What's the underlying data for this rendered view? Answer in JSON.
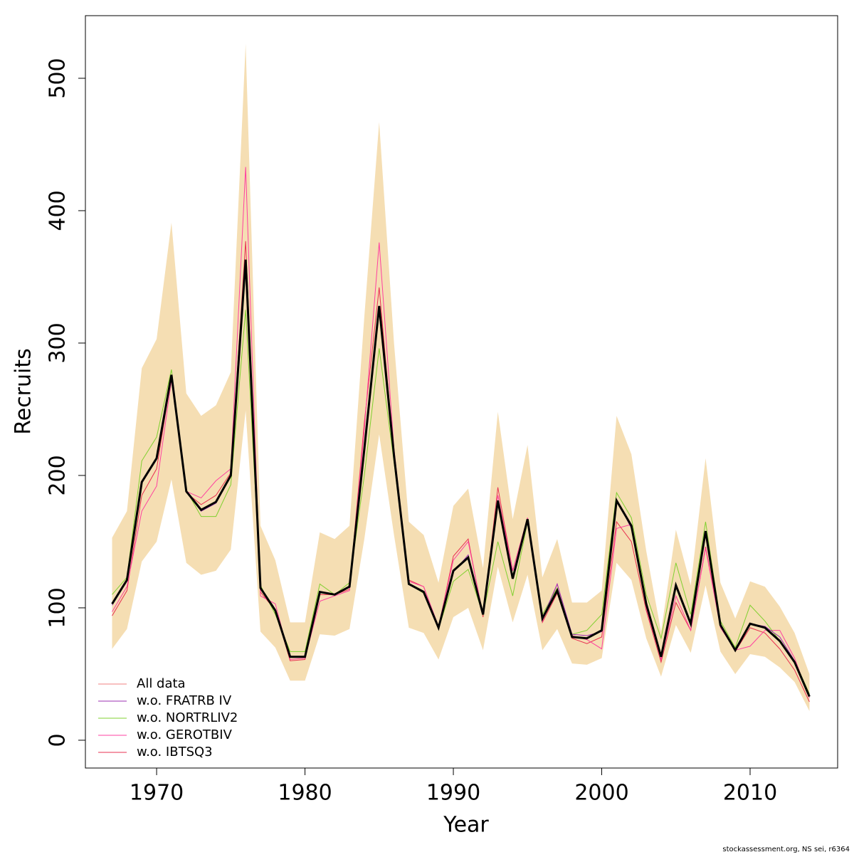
{
  "chart_data": {
    "type": "line",
    "x_label": "Year",
    "y_label": "Recruits",
    "footer": "stockassessment.org, NS sei, r6364",
    "x": [
      1967,
      1968,
      1969,
      1970,
      1971,
      1972,
      1973,
      1974,
      1975,
      1976,
      1977,
      1978,
      1979,
      1980,
      1981,
      1982,
      1983,
      1984,
      1985,
      1986,
      1987,
      1988,
      1989,
      1990,
      1991,
      1992,
      1993,
      1994,
      1995,
      1996,
      1997,
      1998,
      1999,
      2000,
      2001,
      2002,
      2003,
      2004,
      2005,
      2006,
      2007,
      2008,
      2009,
      2010,
      2011,
      2012,
      2013,
      2014
    ],
    "band": {
      "color": "#f5deb3",
      "upper": [
        153,
        173,
        281,
        303,
        391,
        262,
        245,
        253,
        278,
        526,
        162,
        136,
        89,
        89,
        157,
        152,
        162,
        320,
        467,
        300,
        165,
        155,
        119,
        177,
        190,
        130,
        248,
        167,
        223,
        123,
        152,
        104,
        104,
        113,
        245,
        216,
        143,
        82,
        159,
        117,
        213,
        119,
        92,
        120,
        116,
        101,
        81,
        50
      ],
      "lower": [
        69,
        84,
        135,
        150,
        197,
        134,
        125,
        128,
        144,
        249,
        82,
        70,
        45,
        45,
        80,
        79,
        84,
        152,
        231,
        155,
        85,
        81,
        61,
        93,
        100,
        68,
        131,
        89,
        125,
        68,
        84,
        58,
        57,
        62,
        134,
        121,
        77,
        48,
        87,
        66,
        117,
        67,
        50,
        65,
        63,
        55,
        44,
        22
      ]
    },
    "series": [
      {
        "name": "All data",
        "color": "#f08080",
        "line_color": "#000000",
        "values": [
          103,
          121,
          195,
          213,
          276,
          188,
          174,
          180,
          200,
          363,
          115,
          98,
          63,
          63,
          112,
          110,
          116,
          220,
          328,
          215,
          118,
          112,
          85,
          128,
          138,
          95,
          181,
          122,
          167,
          92,
          113,
          78,
          77,
          83,
          181,
          162,
          103,
          63,
          117,
          88,
          158,
          87,
          68,
          88,
          85,
          75,
          59,
          33
        ]
      },
      {
        "name": "w.o. FRATRB IV",
        "color": "#9b30b0",
        "values": [
          102,
          120,
          194,
          212,
          276,
          188,
          173,
          179,
          200,
          362,
          115,
          98,
          63,
          63,
          112,
          110,
          116,
          222,
          327,
          215,
          118,
          112,
          85,
          127,
          140,
          95,
          180,
          122,
          167,
          92,
          118,
          80,
          79,
          82,
          182,
          160,
          103,
          63,
          116,
          87,
          158,
          87,
          68,
          88,
          86,
          78,
          60,
          33
        ]
      },
      {
        "name": "w.o. NORTRLIV2",
        "color": "#80d030",
        "values": [
          110,
          123,
          211,
          229,
          280,
          189,
          169,
          169,
          193,
          325,
          117,
          95,
          67,
          67,
          118,
          110,
          119,
          200,
          296,
          210,
          118,
          111,
          84,
          120,
          129,
          95,
          150,
          109,
          165,
          95,
          115,
          80,
          83,
          95,
          187,
          168,
          110,
          77,
          134,
          95,
          165,
          90,
          70,
          102,
          90,
          75,
          60,
          35
        ]
      },
      {
        "name": "w.o. GEROTBIV",
        "color": "#ff40a0",
        "values": [
          97,
          116,
          173,
          192,
          272,
          188,
          183,
          196,
          205,
          433,
          109,
          103,
          61,
          62,
          105,
          109,
          113,
          235,
          376,
          220,
          120,
          116,
          86,
          136,
          150,
          95,
          185,
          128,
          168,
          90,
          118,
          79,
          76,
          69,
          160,
          163,
          100,
          61,
          109,
          83,
          145,
          85,
          68,
          71,
          83,
          83,
          62,
          32
        ]
      },
      {
        "name": "w.o. IBTSQ3",
        "color": "#e83050",
        "values": [
          94,
          113,
          185,
          205,
          275,
          187,
          178,
          185,
          202,
          377,
          112,
          98,
          60,
          61,
          110,
          110,
          114,
          240,
          342,
          215,
          121,
          116,
          85,
          139,
          152,
          93,
          191,
          128,
          168,
          89,
          111,
          77,
          73,
          78,
          165,
          150,
          98,
          59,
          104,
          83,
          146,
          87,
          67,
          85,
          81,
          69,
          53,
          29
        ]
      }
    ],
    "xlim": [
      1965.2,
      2015.9
    ],
    "ylim": [
      -21,
      547.3
    ],
    "xticks": [
      1970,
      1980,
      1990,
      2000,
      2010
    ],
    "yticks": [
      0,
      100,
      200,
      300,
      400,
      500
    ],
    "legend": "bottom-left"
  }
}
